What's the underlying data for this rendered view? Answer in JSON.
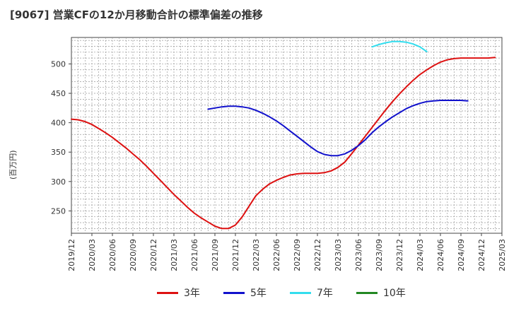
{
  "chart_data": {
    "type": "line",
    "title": "[9067]  営業CFの12か月移動合計の標準偏差の推移",
    "ylabel": "(百万円)",
    "xlabel": "",
    "ylim": [
      212,
      545
    ],
    "yticks": [
      250,
      300,
      350,
      400,
      450,
      500
    ],
    "x_start": "2019-12",
    "x_end": "2025-03",
    "xticks": [
      "2019/12",
      "2020/03",
      "2020/06",
      "2020/09",
      "2020/12",
      "2021/03",
      "2021/06",
      "2021/09",
      "2021/12",
      "2022/03",
      "2022/06",
      "2022/09",
      "2022/12",
      "2023/03",
      "2023/06",
      "2023/09",
      "2023/12",
      "2024/03",
      "2024/06",
      "2024/09",
      "2024/12",
      "2025/03"
    ],
    "grid": true,
    "legend_position": "bottom",
    "series": [
      {
        "name": "3年",
        "color": "#dd1111",
        "start": "2019-12",
        "values": [
          406,
          405,
          402,
          397,
          390,
          383,
          375,
          366,
          357,
          347,
          337,
          326,
          314,
          302,
          290,
          278,
          267,
          256,
          246,
          238,
          231,
          224,
          220,
          220,
          226,
          240,
          258,
          276,
          287,
          296,
          302,
          307,
          311,
          313,
          314,
          314,
          314,
          315,
          318,
          324,
          333,
          347,
          362,
          377,
          392,
          407,
          422,
          436,
          449,
          461,
          472,
          482,
          490,
          497,
          503,
          507,
          509,
          510,
          510,
          510,
          510,
          510,
          511
        ]
      },
      {
        "name": "5年",
        "color": "#1111cc",
        "start": "2021-08",
        "values": [
          423,
          425,
          427,
          428,
          428,
          427,
          425,
          421,
          416,
          410,
          403,
          395,
          386,
          377,
          368,
          359,
          351,
          346,
          344,
          344,
          347,
          353,
          361,
          371,
          383,
          393,
          402,
          410,
          417,
          424,
          429,
          433,
          436,
          437,
          438,
          438,
          438,
          438,
          437
        ]
      },
      {
        "name": "7年",
        "color": "#33ddee",
        "start": "2023-08",
        "values": [
          529,
          533,
          536,
          538,
          538,
          537,
          534,
          529,
          521
        ]
      },
      {
        "name": "10年",
        "color": "#228822",
        "start": "2025-03",
        "values": []
      }
    ]
  }
}
